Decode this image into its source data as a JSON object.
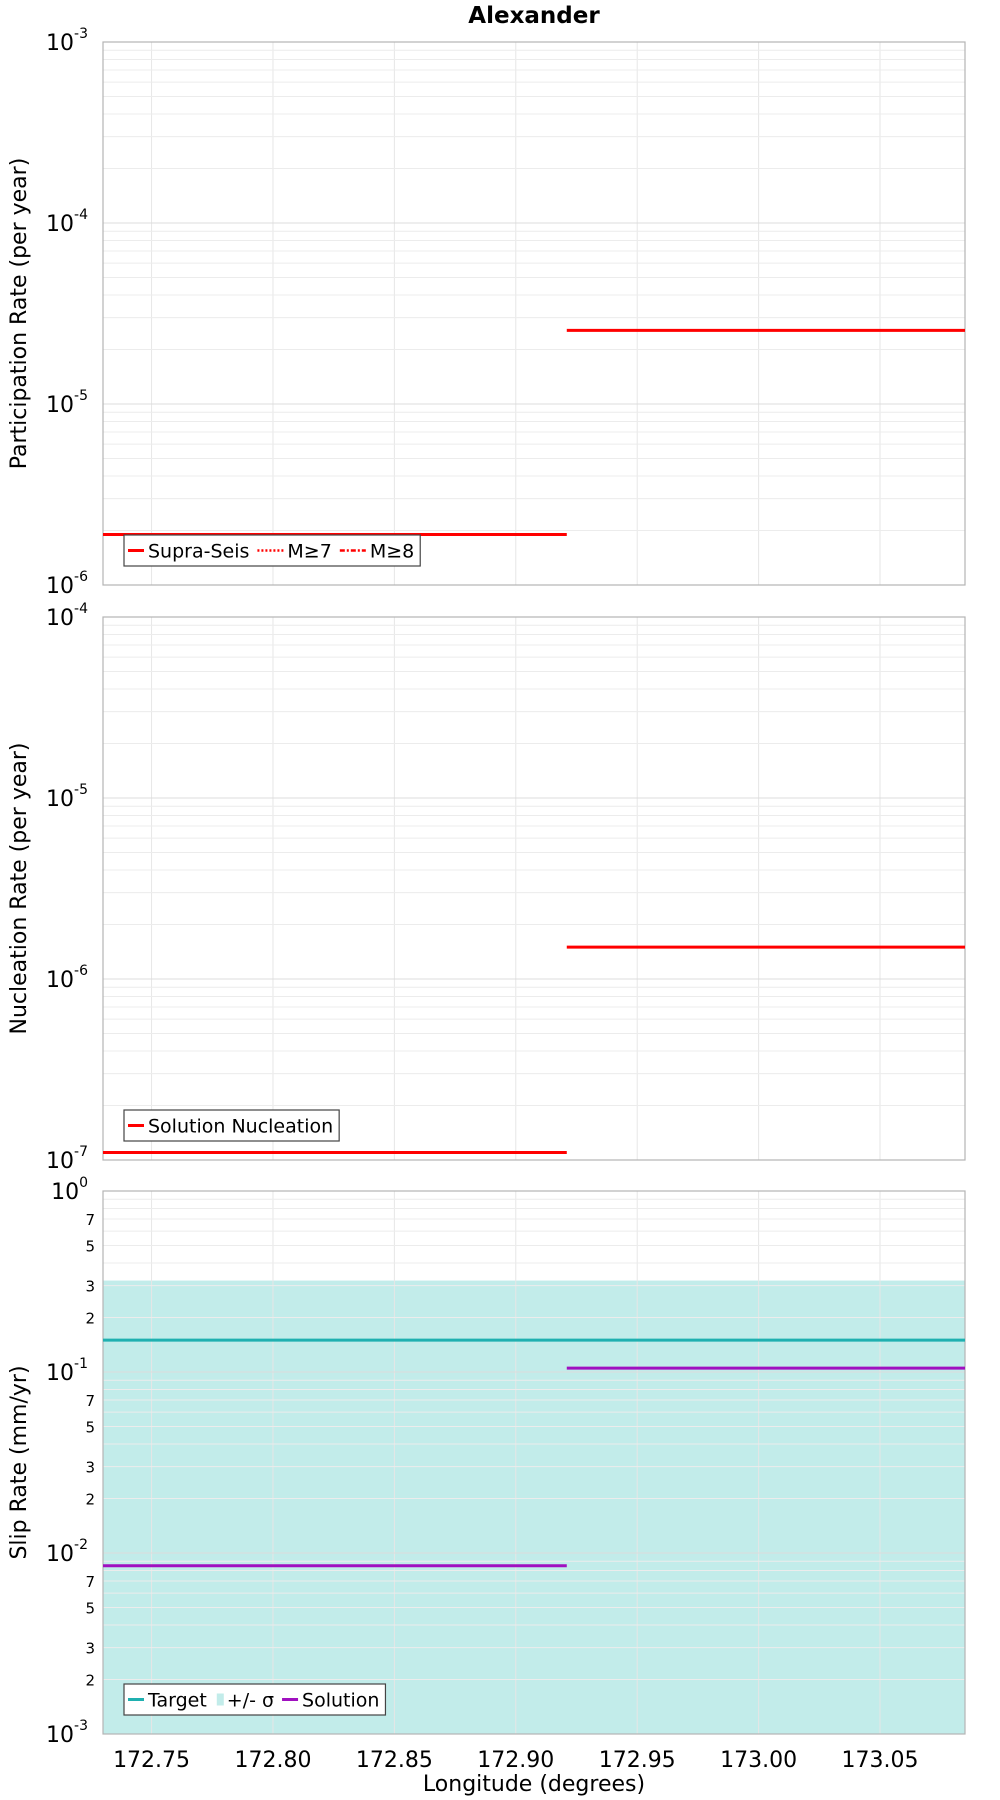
{
  "chart_data": [
    {
      "type": "line",
      "title": "Alexander",
      "xlabel": "",
      "ylabel": "Participation Rate (per year)",
      "yscale": "log",
      "ylim": [
        1e-06,
        0.001
      ],
      "xlim": [
        172.73,
        173.085
      ],
      "grid": true,
      "legend_position": "bottom-left",
      "y_ticks": [
        {
          "base": "10",
          "exp": "-3",
          "value": 0.001
        },
        {
          "base": "10",
          "exp": "-4",
          "value": 0.0001
        },
        {
          "base": "10",
          "exp": "-5",
          "value": 1e-05
        },
        {
          "base": "10",
          "exp": "-6",
          "value": 1e-06
        }
      ],
      "minor_ticks": [],
      "series": [
        {
          "name": "Supra-Seis",
          "style": "solid",
          "color": "#ff0000",
          "segments": [
            {
              "x": [
                172.73,
                172.921
              ],
              "y": 1.9e-06
            },
            {
              "x": [
                172.921,
                173.085
              ],
              "y": 2.55e-05
            }
          ]
        },
        {
          "name": "M≥7",
          "style": "dotted",
          "color": "#ff0000",
          "segments": []
        },
        {
          "name": "M≥8",
          "style": "dashdot",
          "color": "#ff0000",
          "segments": []
        }
      ]
    },
    {
      "type": "line",
      "title": "",
      "xlabel": "",
      "ylabel": "Nucleation Rate (per year)",
      "yscale": "log",
      "ylim": [
        1e-07,
        0.0001
      ],
      "xlim": [
        172.73,
        173.085
      ],
      "grid": true,
      "legend_position": "bottom-left",
      "y_ticks": [
        {
          "base": "10",
          "exp": "-4",
          "value": 0.0001
        },
        {
          "base": "10",
          "exp": "-5",
          "value": 1e-05
        },
        {
          "base": "10",
          "exp": "-6",
          "value": 1e-06
        },
        {
          "base": "10",
          "exp": "-7",
          "value": 1e-07
        }
      ],
      "minor_ticks": [],
      "series": [
        {
          "name": "Solution Nucleation",
          "style": "solid",
          "color": "#ff0000",
          "segments": [
            {
              "x": [
                172.73,
                172.921
              ],
              "y": 1.1e-07
            },
            {
              "x": [
                172.921,
                173.085
              ],
              "y": 1.5e-06
            }
          ]
        }
      ]
    },
    {
      "type": "line",
      "title": "",
      "xlabel": "Longitude (degrees)",
      "ylabel": "Slip Rate (mm/yr)",
      "yscale": "log",
      "ylim": [
        0.001,
        1
      ],
      "xlim": [
        172.73,
        173.085
      ],
      "grid": true,
      "legend_position": "bottom-left",
      "y_ticks": [
        {
          "base": "10",
          "exp": "0",
          "value": 1
        },
        {
          "base": "10",
          "exp": "-1",
          "value": 0.1
        },
        {
          "base": "10",
          "exp": "-2",
          "value": 0.01
        },
        {
          "base": "10",
          "exp": "-3",
          "value": 0.001
        }
      ],
      "minor_ticks": [
        {
          "label": "7",
          "value": 0.7
        },
        {
          "label": "5",
          "value": 0.5
        },
        {
          "label": "3",
          "value": 0.3
        },
        {
          "label": "2",
          "value": 0.2
        },
        {
          "label": "7",
          "value": 0.07
        },
        {
          "label": "5",
          "value": 0.05
        },
        {
          "label": "3",
          "value": 0.03
        },
        {
          "label": "2",
          "value": 0.02
        },
        {
          "label": "7",
          "value": 0.007
        },
        {
          "label": "5",
          "value": 0.005
        },
        {
          "label": "3",
          "value": 0.003
        },
        {
          "label": "2",
          "value": 0.002
        }
      ],
      "x_ticks": [
        "172.75",
        "172.80",
        "172.85",
        "172.90",
        "172.95",
        "173.00",
        "173.05"
      ],
      "band": {
        "name": "+/- σ",
        "color": "#c2ecea",
        "y_low": 0.001,
        "y_high": 0.32
      },
      "series": [
        {
          "name": "Target",
          "style": "solid",
          "color": "#1fb0b0",
          "segments": [
            {
              "x": [
                172.73,
                173.085
              ],
              "y": 0.15
            }
          ]
        },
        {
          "name": "+/- σ",
          "style": "band",
          "color": "#c2ecea",
          "segments": []
        },
        {
          "name": "Solution",
          "style": "solid",
          "color": "#a010c0",
          "segments": [
            {
              "x": [
                172.73,
                172.921
              ],
              "y": 0.0085
            },
            {
              "x": [
                172.921,
                173.085
              ],
              "y": 0.105
            }
          ]
        }
      ]
    }
  ]
}
